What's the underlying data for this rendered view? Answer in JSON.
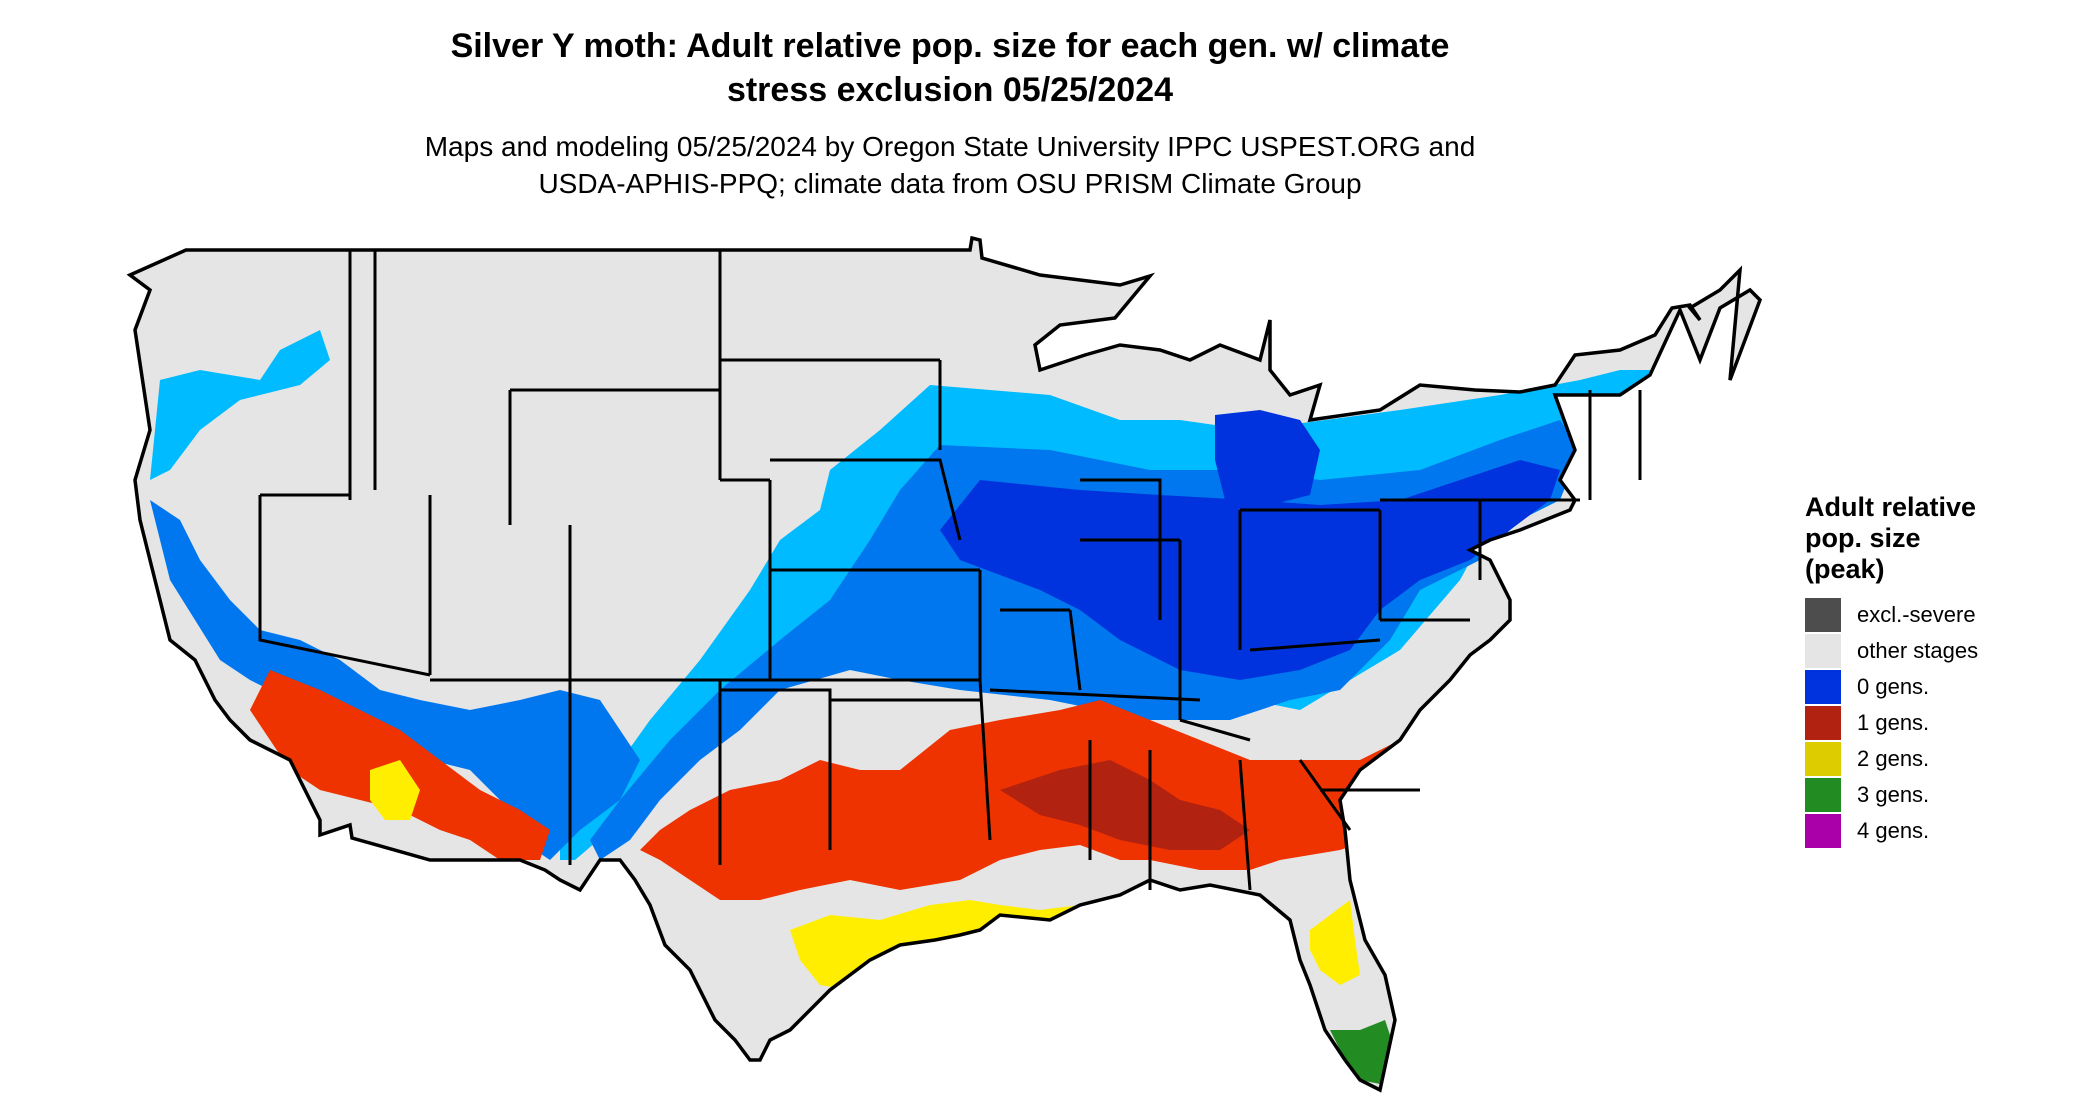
{
  "title": {
    "line1": "Silver Y moth: Adult relative pop. size for each gen. w/ climate",
    "line2": "stress exclusion 05/25/2024"
  },
  "subtitle": {
    "line1": "Maps and modeling 05/25/2024 by Oregon State University IPPC USPEST.ORG and",
    "line2": "USDA-APHIS-PPQ; climate data from OSU PRISM Climate Group"
  },
  "legend": {
    "title_line1": "Adult relative",
    "title_line2": "pop. size",
    "title_line3": "(peak)",
    "items": [
      {
        "label": "excl.-severe",
        "color": "#4d4d4d"
      },
      {
        "label": "other stages",
        "color": "#e5e5e5"
      },
      {
        "label": "0 gens.",
        "color": "#0033dd"
      },
      {
        "label": "1 gens.",
        "color": "#b22211"
      },
      {
        "label": "2 gens.",
        "color": "#ddcc00"
      },
      {
        "label": "3 gens.",
        "color": "#228b22"
      },
      {
        "label": "4 gens.",
        "color": "#aa00aa"
      }
    ]
  },
  "map_colors": {
    "land": "#e5e5e5",
    "border": "#000000",
    "gen0_light": "#00bbff",
    "gen0_mid": "#0077ee",
    "gen0_dark": "#0033dd",
    "gen1": "#ee3300",
    "gen1_dark": "#b22211",
    "gen2": "#ffee00",
    "gen3": "#66cc66",
    "gen3_dark": "#228b22"
  }
}
